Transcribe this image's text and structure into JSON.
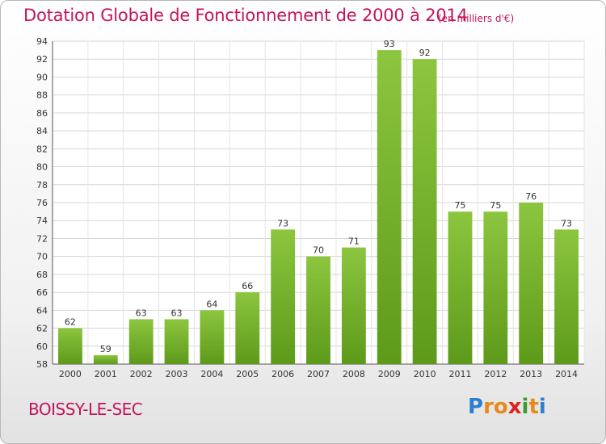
{
  "header": {
    "title": "Dotation Globale de Fonctionnement de 2000 à 2014",
    "unit": "(en milliers d'€)"
  },
  "footer": {
    "commune": "BOISSY-LE-SEC",
    "logo_letters": [
      "P",
      "r",
      "o",
      "x",
      "i",
      "t",
      "i"
    ],
    "logo_colors": [
      "#2b7fcf",
      "#e8891c",
      "#e8891c",
      "#d8261c",
      "#3a9a2c",
      "#e8891c",
      "#2b7fcf"
    ]
  },
  "chart_data": {
    "type": "bar",
    "title": "Dotation Globale de Fonctionnement de 2000 à 2014",
    "subtitle": "(en milliers d'€)",
    "categories": [
      "2000",
      "2001",
      "2002",
      "2003",
      "2004",
      "2005",
      "2006",
      "2007",
      "2008",
      "2009",
      "2010",
      "2011",
      "2012",
      "2013",
      "2014"
    ],
    "values": [
      62,
      59,
      63,
      63,
      64,
      66,
      73,
      70,
      71,
      93,
      92,
      75,
      75,
      76,
      73
    ],
    "ylim": [
      58,
      94
    ],
    "yticks": [
      58,
      60,
      62,
      64,
      66,
      68,
      70,
      72,
      74,
      76,
      78,
      80,
      82,
      84,
      86,
      88,
      90,
      92,
      94
    ],
    "grid": true,
    "bar_color": "#8cc63f",
    "bar_color_dark": "#5e9a1a"
  }
}
